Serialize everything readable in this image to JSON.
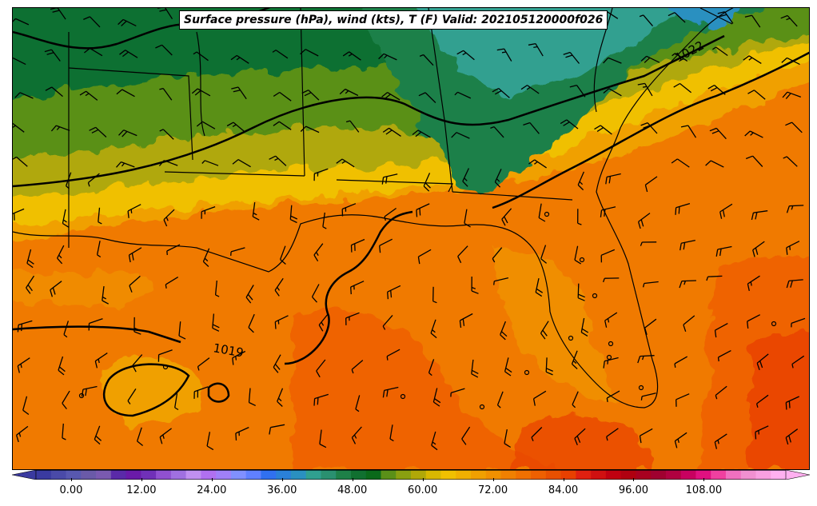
{
  "title": "Surface pressure (hPa), wind (kts), T (F) Valid: 202105120000f026",
  "contour_labels": [
    "1019",
    "1022"
  ],
  "colorbar": {
    "tick_labels": [
      "0.00",
      "12.00",
      "24.00",
      "36.00",
      "48.00",
      "60.00",
      "72.00",
      "84.00",
      "96.00",
      "108.00"
    ],
    "tick_values": [
      0,
      12,
      24,
      36,
      48,
      60,
      72,
      84,
      96,
      108
    ],
    "range": [
      -6,
      122
    ],
    "step": 2,
    "colors": [
      "#3a3aa0",
      "#4a4aa8",
      "#5858b0",
      "#6a5aa8",
      "#7a5ab0",
      "#5a2aa8",
      "#6a1aa8",
      "#7030b8",
      "#9050d0",
      "#a070e0",
      "#c090f0",
      "#b070f0",
      "#a080f8",
      "#8090ff",
      "#6080ff",
      "#3070f0",
      "#2a80d8",
      "#2a90c0",
      "#30a090",
      "#2a9070",
      "#1e8048",
      "#107030",
      "#0a6a1a",
      "#5a9018",
      "#8aa010",
      "#b0a808",
      "#d8b800",
      "#f0c000",
      "#f0b000",
      "#f0a000",
      "#f09000",
      "#f08000",
      "#f07000",
      "#ee6000",
      "#e85000",
      "#e84000",
      "#e02010",
      "#d01010",
      "#c00010",
      "#b00010",
      "#a80020",
      "#a00030",
      "#b00040",
      "#c80060",
      "#e01080",
      "#f040a0",
      "#f070c0",
      "#f090d0",
      "#f8a0e0",
      "#ffb0f0"
    ]
  },
  "icons": {
    "wind_barb": "wind-barb-icon",
    "pressure_low": "low-center-icon"
  }
}
